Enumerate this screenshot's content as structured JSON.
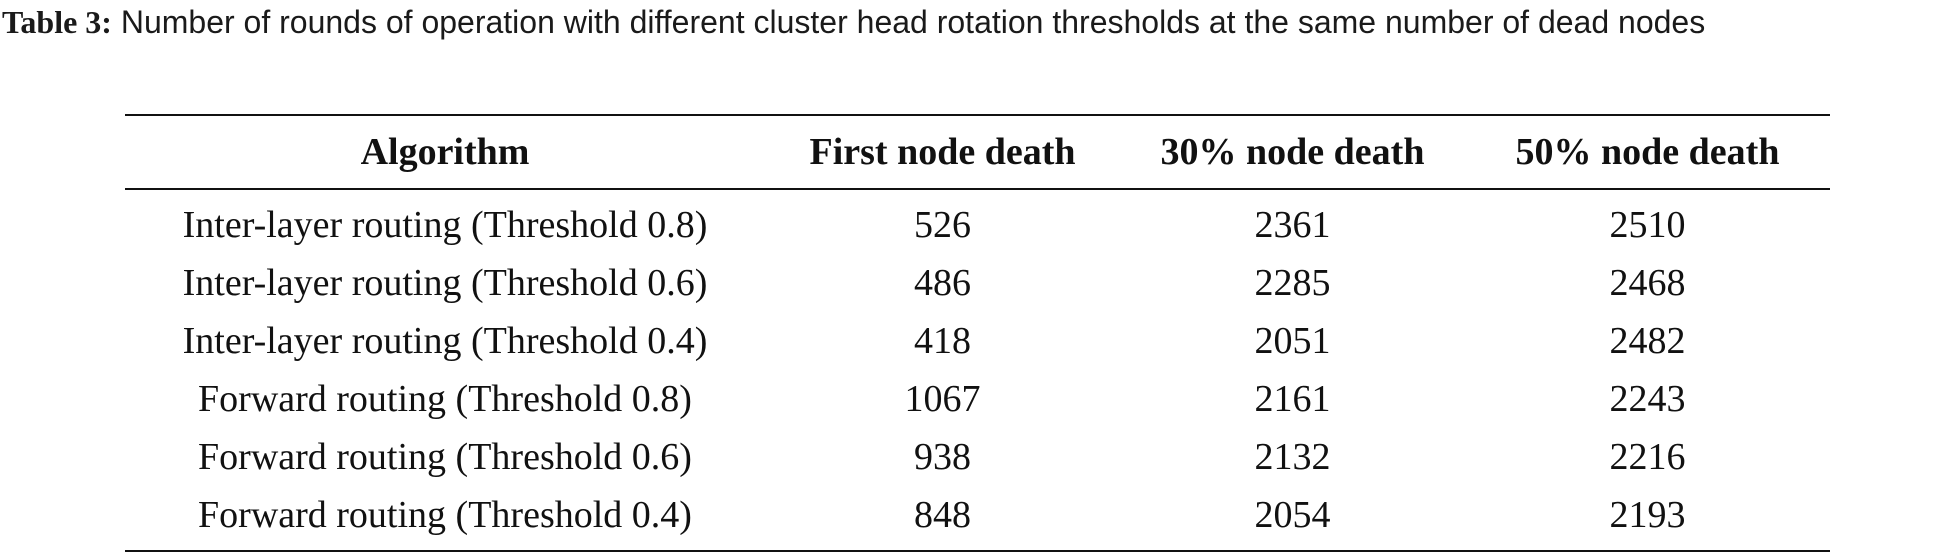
{
  "caption": {
    "label": "Table 3:",
    "text": "Number of rounds of operation with different cluster head rotation thresholds at the same number of dead nodes"
  },
  "table": {
    "headers": [
      "Algorithm",
      "First node death",
      "30% node death",
      "50% node death"
    ],
    "rows": [
      [
        "Inter-layer routing (Threshold 0.8)",
        "526",
        "2361",
        "2510"
      ],
      [
        "Inter-layer routing (Threshold 0.6)",
        "486",
        "2285",
        "2468"
      ],
      [
        "Inter-layer routing (Threshold 0.4)",
        "418",
        "2051",
        "2482"
      ],
      [
        "Forward routing (Threshold 0.8)",
        "1067",
        "2161",
        "2243"
      ],
      [
        "Forward routing (Threshold 0.6)",
        "938",
        "2132",
        "2216"
      ],
      [
        "Forward routing (Threshold 0.4)",
        "848",
        "2054",
        "2193"
      ]
    ]
  }
}
